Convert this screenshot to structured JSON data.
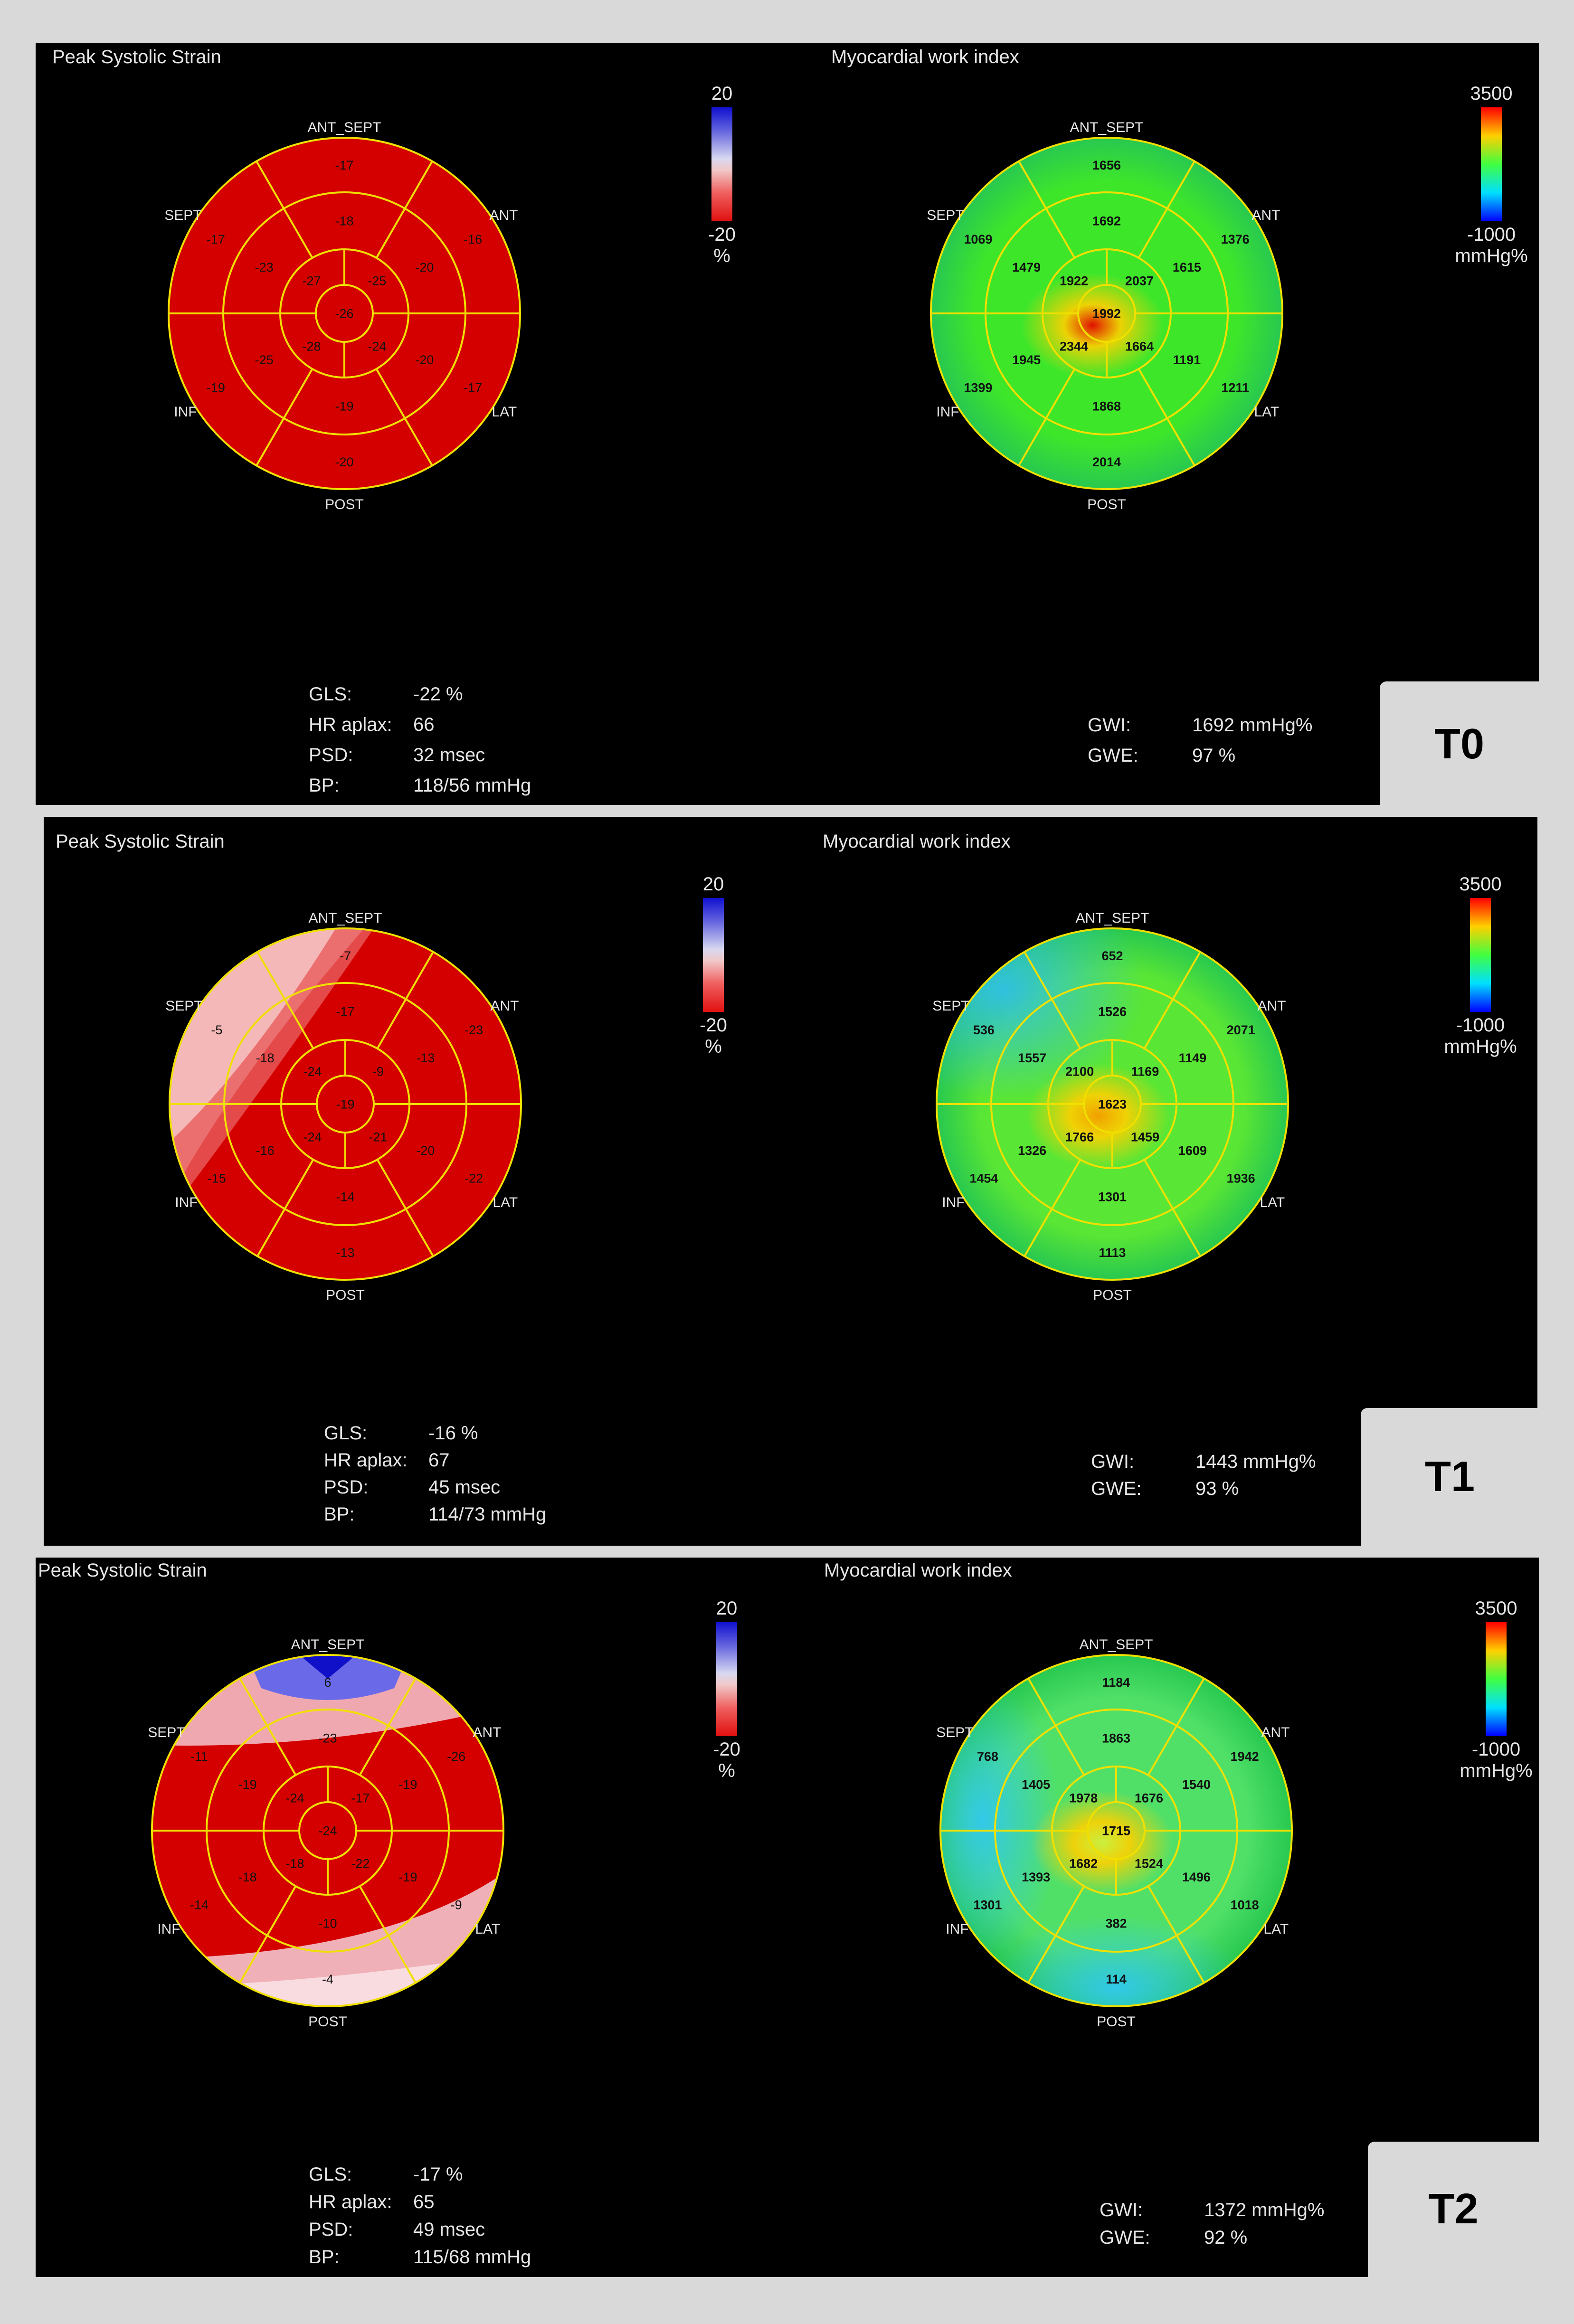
{
  "panels": [
    {
      "time_label": "T0",
      "strain_title": "Peak Systolic Strain",
      "work_title": "Myocardial work index",
      "strain_scale": {
        "top": "20",
        "bottom": "-20",
        "unit": "%"
      },
      "work_scale": {
        "top": "3500",
        "bottom": "-1000",
        "unit": "mmHg%"
      },
      "orientation": {
        "top": "ANT_SEPT",
        "upper_left": "SEPT",
        "upper_right": "ANT",
        "lower_left": "INF",
        "lower_right": "LAT",
        "bottom": "POST"
      },
      "strain_segments": {
        "basal": [
          "-17",
          "-16",
          "-17",
          "-20",
          "-19",
          "-17"
        ],
        "mid": [
          "-18",
          "-20",
          "-20",
          "-19",
          "-25",
          "-23"
        ],
        "apical": [
          "-25",
          "-24",
          "-28",
          "-27"
        ],
        "apex": "-26"
      },
      "work_segments": {
        "basal": [
          "1656",
          "1376",
          "1211",
          "2014",
          "1399",
          "1069"
        ],
        "mid": [
          "1692",
          "1615",
          "1191",
          "1868",
          "1945",
          "1479"
        ],
        "apical": [
          "2037",
          "1664",
          "2344",
          "1922"
        ],
        "apex": "1992"
      },
      "stats_left": [
        {
          "label": "GLS:",
          "value": "-22 %"
        },
        {
          "label": "HR aplax:",
          "value": "66"
        },
        {
          "label": "PSD:",
          "value": "32 msec"
        },
        {
          "label": "BP:",
          "value": "118/56 mmHg"
        }
      ],
      "stats_right": [
        {
          "label": "GWI:",
          "value": "1692 mmHg%"
        },
        {
          "label": "GWE:",
          "value": "97 %"
        }
      ],
      "strain_colors": {
        "base": "#d40000",
        "light_zones": []
      },
      "work_colors": {
        "base": "#3ee62a",
        "hot": "#e01000",
        "cool": "#30d8d8"
      }
    },
    {
      "time_label": "T1",
      "strain_title": "Peak Systolic Strain",
      "work_title": "Myocardial work index",
      "strain_scale": {
        "top": "20",
        "bottom": "-20",
        "unit": "%"
      },
      "work_scale": {
        "top": "3500",
        "bottom": "-1000",
        "unit": "mmHg%"
      },
      "orientation": {
        "top": "ANT_SEPT",
        "upper_left": "SEPT",
        "upper_right": "ANT",
        "lower_left": "INF",
        "lower_right": "LAT",
        "bottom": "POST"
      },
      "strain_segments": {
        "basal": [
          "-7",
          "-23",
          "-22",
          "-13",
          "-15",
          "-5"
        ],
        "mid": [
          "-17",
          "-13",
          "-20",
          "-14",
          "-16",
          "-18"
        ],
        "apical": [
          "-9",
          "-21",
          "-24",
          "-24"
        ],
        "apex": "-19"
      },
      "work_segments": {
        "basal": [
          "652",
          "2071",
          "1936",
          "1113",
          "1454",
          "536"
        ],
        "mid": [
          "1526",
          "1149",
          "1609",
          "1301",
          "1326",
          "1557"
        ],
        "apical": [
          "1169",
          "1459",
          "1766",
          "2100"
        ],
        "apex": "1623"
      },
      "stats_left": [
        {
          "label": "GLS:",
          "value": "-16 %"
        },
        {
          "label": "HR aplax:",
          "value": "67"
        },
        {
          "label": "PSD:",
          "value": "45 msec"
        },
        {
          "label": "BP:",
          "value": "114/73 mmHg"
        }
      ],
      "stats_right": [
        {
          "label": "GWI:",
          "value": "1443 mmHg%"
        },
        {
          "label": "GWE:",
          "value": "93 %"
        }
      ],
      "strain_colors": {
        "base": "#d40000",
        "light_zones": [
          "upper-left"
        ]
      },
      "work_colors": {
        "base": "#5ae634",
        "hot": "#f0a000",
        "cool": "#30c0e8"
      }
    },
    {
      "time_label": "T2",
      "strain_title": "Peak Systolic Strain",
      "work_title": "Myocardial work index",
      "strain_scale": {
        "top": "20",
        "bottom": "-20",
        "unit": "%"
      },
      "work_scale": {
        "top": "3500",
        "bottom": "-1000",
        "unit": "mmHg%"
      },
      "orientation": {
        "top": "ANT_SEPT",
        "upper_left": "SEPT",
        "upper_right": "ANT",
        "lower_left": "INF",
        "lower_right": "LAT",
        "bottom": "POST"
      },
      "strain_segments": {
        "basal": [
          "6",
          "-26",
          "-9",
          "-4",
          "-14",
          "-11"
        ],
        "mid": [
          "-23",
          "-19",
          "-19",
          "-10",
          "-18",
          "-19"
        ],
        "apical": [
          "-17",
          "-22",
          "-18",
          "-24"
        ],
        "apex": "-24"
      },
      "work_segments": {
        "basal": [
          "1184",
          "1942",
          "1018",
          "114",
          "1301",
          "768"
        ],
        "mid": [
          "1863",
          "1540",
          "1496",
          "382",
          "1393",
          "1405"
        ],
        "apical": [
          "1676",
          "1524",
          "1682",
          "1978"
        ],
        "apex": "1715"
      },
      "stats_left": [
        {
          "label": "GLS:",
          "value": "-17 %"
        },
        {
          "label": "HR aplax:",
          "value": "65"
        },
        {
          "label": "PSD:",
          "value": "49 msec"
        },
        {
          "label": "BP:",
          "value": "115/68 mmHg"
        }
      ],
      "stats_right": [
        {
          "label": "GWI:",
          "value": "1372 mmHg%"
        },
        {
          "label": "GWE:",
          "value": "92 %"
        }
      ],
      "strain_colors": {
        "base": "#d40000",
        "light_zones": [
          "top",
          "bottom"
        ]
      },
      "work_colors": {
        "base": "#50e068",
        "hot": "#c8f040",
        "cool": "#30c8f0"
      }
    }
  ]
}
